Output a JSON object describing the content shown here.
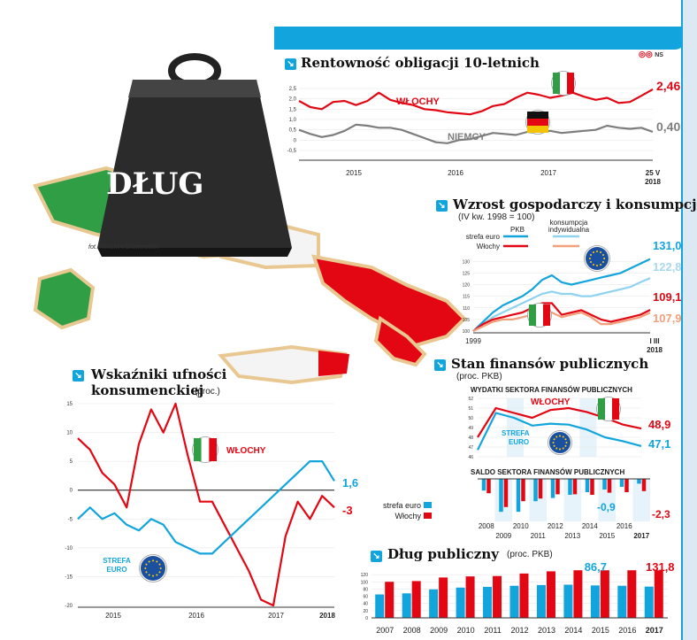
{
  "brand": "NS",
  "photo_credit": "fot. AlexLMX/Shutterstock",
  "weight_label": "DŁUG",
  "colors": {
    "italy": "#e30613",
    "germany": "#7d7d7d",
    "euro": "#12a5dd",
    "accent": "#12a5dd",
    "euro_light": "#8fd3ef",
    "italy_light": "#f2a07a",
    "flag_green": "#2f9e44"
  },
  "chart_data": [
    {
      "type": "line",
      "title": "Rentowność obligacji 10-letnich",
      "x_ticks": [
        "2015",
        "2016",
        "2017",
        "25 V 2018"
      ],
      "y_ticks": [
        "2,5",
        "2,0",
        "1,5",
        "1,0",
        "0,5",
        "0",
        "-0,5"
      ],
      "ylim": [
        -0.5,
        2.5
      ],
      "series": [
        {
          "name": "Włochy",
          "label": "WŁOCHY",
          "last_value": "2,461",
          "values": [
            1.9,
            1.6,
            1.5,
            1.85,
            1.9,
            1.7,
            1.9,
            2.3,
            1.95,
            1.8,
            1.7,
            1.5,
            1.45,
            1.35,
            1.3,
            1.25,
            1.4,
            1.65,
            1.75,
            2.05,
            2.3,
            2.2,
            2.05,
            2.15,
            2.3,
            2.1,
            1.95,
            2.05,
            1.8,
            1.85,
            2.15,
            2.46
          ]
        },
        {
          "name": "Niemcy",
          "label": "NIEMCY",
          "last_value": "0,40",
          "values": [
            0.5,
            0.3,
            0.15,
            0.25,
            0.45,
            0.75,
            0.7,
            0.6,
            0.6,
            0.5,
            0.3,
            0.1,
            -0.1,
            -0.15,
            0.0,
            0.05,
            0.2,
            0.35,
            0.3,
            0.25,
            0.4,
            0.35,
            0.45,
            0.35,
            0.4,
            0.45,
            0.5,
            0.7,
            0.6,
            0.55,
            0.6,
            0.4
          ]
        }
      ]
    },
    {
      "type": "line",
      "title": "Wzrost gospodarczy i konsumpcja",
      "subtitle": "(IV kw. 1998 = 100)",
      "legend": {
        "rows": [
          "strefa euro",
          "Włochy"
        ],
        "cols": [
          "PKB",
          "konsumpcja indywidualna"
        ]
      },
      "x_ticks": [
        "1999",
        "I III 2018"
      ],
      "y_ticks": [
        "130",
        "125",
        "120",
        "115",
        "110",
        "105",
        "100"
      ],
      "ylim": [
        100,
        132
      ],
      "series": [
        {
          "name": "strefa euro PKB",
          "last_value": "131,0",
          "values": [
            100,
            104,
            108,
            111,
            113,
            115,
            118,
            122,
            124,
            121,
            120,
            121,
            122,
            123,
            124,
            125,
            127,
            129,
            131
          ]
        },
        {
          "name": "strefa euro konsumpcja indywidualna",
          "last_value": "122,8",
          "values": [
            100,
            103,
            106,
            108,
            110,
            112,
            114,
            116,
            117,
            116,
            116,
            115,
            115,
            116,
            117,
            118,
            119,
            121,
            122.8
          ]
        },
        {
          "name": "Włochy PKB",
          "last_value": "109,1",
          "values": [
            100,
            103,
            105,
            106,
            107,
            108,
            110,
            112,
            112,
            107,
            108,
            109,
            107,
            105,
            104,
            105,
            106,
            107,
            109.1
          ]
        },
        {
          "name": "Włochy konsumpcja indywidualna",
          "last_value": "107,9",
          "values": [
            100,
            102,
            104,
            105,
            105,
            106,
            107,
            108,
            108,
            106,
            107,
            108,
            106,
            103,
            103,
            104,
            105,
            106,
            107.9
          ]
        }
      ]
    },
    {
      "type": "line",
      "title": "Wskaźniki ufności konsumenckiej",
      "subtitle": "(proc.)",
      "x_ticks": [
        "2015",
        "2016",
        "2017",
        "2018"
      ],
      "y_ticks": [
        "15",
        "10",
        "5",
        "0",
        "-5",
        "-10",
        "-15",
        "-20"
      ],
      "ylim": [
        -20,
        15
      ],
      "series": [
        {
          "name": "Włochy",
          "label": "WŁOCHY",
          "last_value": "-3",
          "values": [
            9,
            7,
            3,
            1,
            -3,
            8,
            14,
            10,
            15,
            6,
            -2,
            -2,
            -6,
            -10,
            -14,
            -19,
            -20,
            -8,
            -2,
            -5,
            -1,
            -3
          ]
        },
        {
          "name": "strefa euro",
          "label": "STREFA EURO",
          "last_value": "1,6",
          "values": [
            -5,
            -3,
            -5,
            -4,
            -6,
            -7,
            -5,
            -6,
            -9,
            -10,
            -11,
            -11,
            -9,
            -7,
            -5,
            -3,
            -1,
            1,
            3,
            5,
            5,
            1.6
          ]
        }
      ]
    },
    {
      "type": "line",
      "title": "Stan finansów publicznych",
      "subtitle": "(proc. PKB)",
      "chart_title": "WYDATKI SEKTORA FINANSÓW PUBLICZNYCH",
      "y_ticks": [
        "52",
        "51",
        "50",
        "49",
        "48",
        "47",
        "46"
      ],
      "ylim": [
        46,
        52
      ],
      "series": [
        {
          "name": "Włochy",
          "label": "WŁOCHY",
          "last_value": "48,9",
          "values": [
            48.0,
            51.0,
            50.5,
            50.0,
            50.8,
            51.0,
            50.6,
            50.0,
            49.3,
            48.9
          ]
        },
        {
          "name": "strefa euro",
          "label": "STREFA EURO",
          "last_value": "47,1",
          "values": [
            46.7,
            50.5,
            50.0,
            49.2,
            49.4,
            49.3,
            48.8,
            48.0,
            47.6,
            47.1
          ]
        }
      ]
    },
    {
      "type": "bar",
      "chart_title": "SALDO SEKTORA FINANSÓW PUBLICZNYCH",
      "legend": [
        "strefa euro",
        "Włochy"
      ],
      "categories": [
        "2008",
        "2009",
        "2010",
        "2011",
        "2012",
        "2013",
        "2014",
        "2015",
        "2016",
        "2017"
      ],
      "series": [
        {
          "name": "strefa euro",
          "last_value": "-0,9",
          "values": [
            -2.2,
            -6.2,
            -6.2,
            -4.2,
            -3.6,
            -3.0,
            -2.5,
            -2.0,
            -1.5,
            -0.9
          ]
        },
        {
          "name": "Włochy",
          "last_value": "-2,3",
          "values": [
            -2.7,
            -5.3,
            -4.2,
            -3.7,
            -2.9,
            -2.9,
            -3.0,
            -2.6,
            -2.5,
            -2.3
          ]
        }
      ]
    },
    {
      "type": "bar",
      "title": "Dług publiczny",
      "subtitle": "(proc. PKB)",
      "y_ticks": [
        "120",
        "100",
        "80",
        "60",
        "40",
        "20",
        "0"
      ],
      "ylim": [
        0,
        135
      ],
      "categories": [
        "2007",
        "2008",
        "2009",
        "2010",
        "2011",
        "2012",
        "2013",
        "2014",
        "2015",
        "2016",
        "2017"
      ],
      "series": [
        {
          "name": "strefa euro",
          "last_value": "86,7",
          "values": [
            65,
            68,
            79,
            84,
            86,
            89,
            91,
            92,
            90,
            89,
            86.7
          ]
        },
        {
          "name": "Włochy",
          "last_value": "131,8",
          "values": [
            100,
            102,
            112,
            115,
            116,
            123,
            129,
            132,
            132,
            132,
            131.8
          ]
        }
      ]
    }
  ]
}
